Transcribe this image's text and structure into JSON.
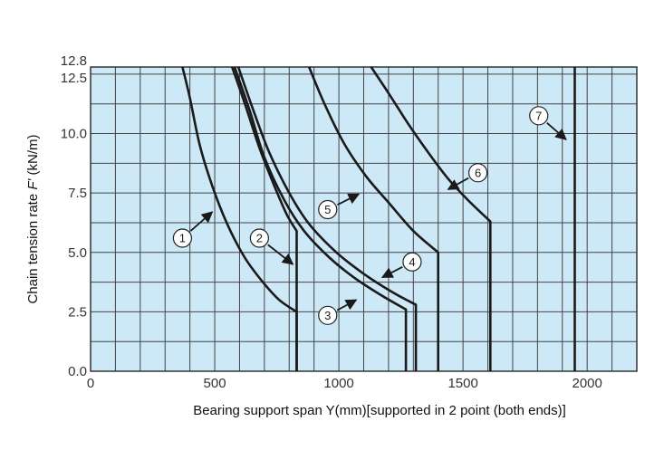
{
  "chart_data": {
    "type": "line",
    "title": "",
    "xlabel": "Bearing support span Y(mm)[supported in 2 point (both ends)]",
    "ylabel_prefix": "Chain tension rate ",
    "ylabel_var": "F'",
    "ylabel_suffix": " (kN/m)",
    "xlim": [
      0,
      2200
    ],
    "ylim": [
      0,
      12.8
    ],
    "x_ticks": [
      0,
      500,
      1000,
      1500,
      2000
    ],
    "x_tick_labels": [
      "0",
      "500",
      "1000",
      "1500",
      "2000"
    ],
    "y_ticks": [
      0.0,
      2.5,
      5.0,
      7.5,
      10.0,
      12.5,
      12.8
    ],
    "y_tick_labels": [
      "0.0",
      "2.5",
      "5.0",
      "7.5",
      "10.0",
      "12.5",
      "12.8"
    ],
    "grid": true,
    "x_grid_step": 100,
    "y_grid_step": 1.25,
    "colors": {
      "plot_background": "#cde8f7",
      "grid": "#444444",
      "curve": "#1a1a1a"
    },
    "series": [
      {
        "label": "1",
        "points": [
          [
            370,
            12.8
          ],
          [
            400,
            11.5
          ],
          [
            440,
            9.5
          ],
          [
            490,
            7.8
          ],
          [
            550,
            6.2
          ],
          [
            620,
            4.8
          ],
          [
            690,
            3.8
          ],
          [
            760,
            3.0
          ],
          [
            830,
            2.5
          ],
          [
            830,
            0
          ]
        ]
      },
      {
        "label": "2",
        "points": [
          [
            570,
            12.8
          ],
          [
            620,
            11.3
          ],
          [
            680,
            9.4
          ],
          [
            740,
            7.8
          ],
          [
            790,
            6.6
          ],
          [
            830,
            5.9
          ],
          [
            830,
            0
          ]
        ]
      },
      {
        "label": "3",
        "points": [
          [
            580,
            12.8
          ],
          [
            640,
            11.0
          ],
          [
            700,
            9.0
          ],
          [
            780,
            7.2
          ],
          [
            860,
            5.9
          ],
          [
            960,
            4.8
          ],
          [
            1060,
            3.95
          ],
          [
            1170,
            3.2
          ],
          [
            1270,
            2.6
          ],
          [
            1270,
            0
          ]
        ]
      },
      {
        "label": "4",
        "points": [
          [
            595,
            12.8
          ],
          [
            655,
            11.0
          ],
          [
            720,
            9.2
          ],
          [
            800,
            7.5
          ],
          [
            880,
            6.2
          ],
          [
            990,
            5.0
          ],
          [
            1100,
            4.1
          ],
          [
            1220,
            3.3
          ],
          [
            1310,
            2.8
          ],
          [
            1310,
            0
          ]
        ]
      },
      {
        "label": "5",
        "points": [
          [
            880,
            12.8
          ],
          [
            940,
            11.3
          ],
          [
            1020,
            9.6
          ],
          [
            1110,
            8.2
          ],
          [
            1200,
            7.1
          ],
          [
            1300,
            5.9
          ],
          [
            1400,
            5.0
          ],
          [
            1400,
            0
          ]
        ]
      },
      {
        "label": "6",
        "points": [
          [
            1130,
            12.8
          ],
          [
            1200,
            11.7
          ],
          [
            1280,
            10.4
          ],
          [
            1360,
            9.2
          ],
          [
            1440,
            8.1
          ],
          [
            1520,
            7.2
          ],
          [
            1610,
            6.3
          ],
          [
            1610,
            0
          ]
        ]
      },
      {
        "label": "7",
        "points": [
          [
            1950,
            12.8
          ],
          [
            1950,
            0
          ]
        ]
      }
    ],
    "callouts": [
      {
        "label": "1",
        "circle": [
          370,
          5.6
        ],
        "arrow_to": [
          490,
          6.7
        ]
      },
      {
        "label": "2",
        "circle": [
          680,
          5.6
        ],
        "arrow_to": [
          815,
          4.5
        ]
      },
      {
        "label": "3",
        "circle": [
          955,
          2.35
        ],
        "arrow_to": [
          1070,
          3.0
        ]
      },
      {
        "label": "4",
        "circle": [
          1295,
          4.6
        ],
        "arrow_to": [
          1175,
          3.95
        ]
      },
      {
        "label": "5",
        "circle": [
          955,
          6.8
        ],
        "arrow_to": [
          1080,
          7.45
        ]
      },
      {
        "label": "6",
        "circle": [
          1560,
          8.35
        ],
        "arrow_to": [
          1440,
          7.65
        ]
      },
      {
        "label": "7",
        "circle": [
          1805,
          10.75
        ],
        "arrow_to": [
          1915,
          9.75
        ]
      }
    ]
  }
}
